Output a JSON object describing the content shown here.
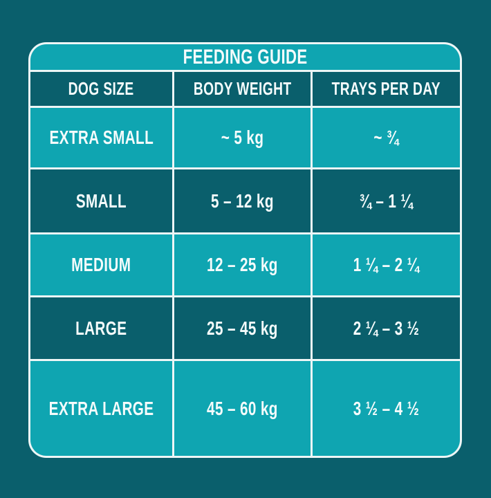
{
  "chart_data": {
    "type": "table",
    "title": "FEEDING GUIDE",
    "columns": [
      "DOG SIZE",
      "BODY WEIGHT",
      "TRAYS PER DAY"
    ],
    "rows": [
      [
        "EXTRA SMALL",
        "~ 5 kg",
        "~ ¾"
      ],
      [
        "SMALL",
        "5 – 12 kg",
        "¾ – 1 ¼"
      ],
      [
        "MEDIUM",
        "12 – 25 kg",
        "1 ¼ – 2 ¼"
      ],
      [
        "LARGE",
        "25 – 45 kg",
        "2 ¼ – 3 ½"
      ],
      [
        "EXTRA LARGE",
        "45 – 60 kg",
        "3 ½ – 4 ½"
      ]
    ],
    "layout": {
      "title_band_style": "teal",
      "header_row_style": "dark",
      "row_stripes": [
        "teal",
        "dark",
        "teal",
        "dark",
        "teal"
      ],
      "grid_lines": "on"
    }
  },
  "colors": {
    "page_background": "#0A5F6C",
    "teal_cell": "#0FA5B1",
    "dark_cell": "#0A5F6C",
    "grid_border": "#EDF6F6",
    "text": "#F4FBFB"
  }
}
